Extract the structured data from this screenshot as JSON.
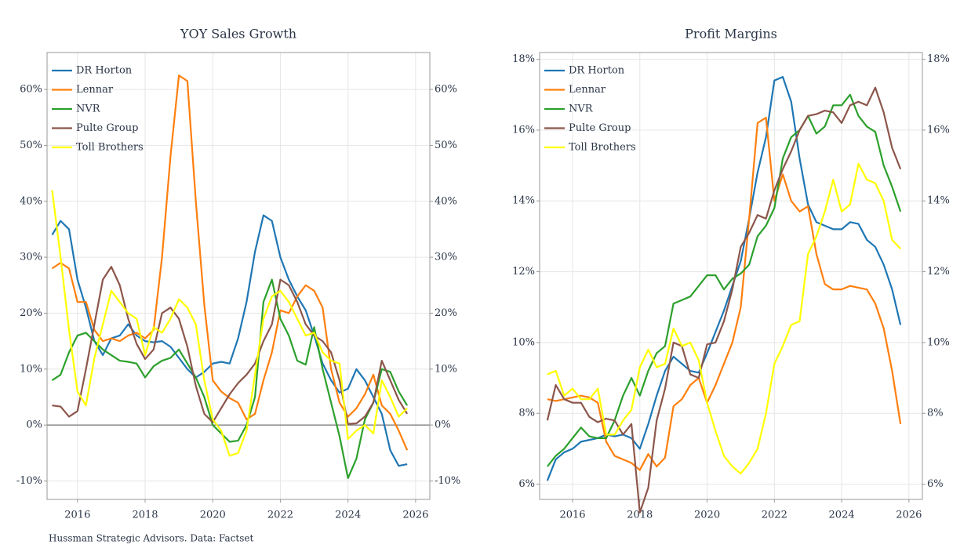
{
  "source": "Hussman Strategic Advisors. Data: Factset",
  "chart_data": [
    {
      "type": "line",
      "title": "YOY Sales Growth",
      "x": [
        2015.25,
        2015.5,
        2015.75,
        2016,
        2016.25,
        2016.5,
        2016.75,
        2017,
        2017.25,
        2017.5,
        2017.75,
        2018,
        2018.25,
        2018.5,
        2018.75,
        2019,
        2019.25,
        2019.5,
        2019.75,
        2020,
        2020.25,
        2020.5,
        2020.75,
        2021,
        2021.25,
        2021.5,
        2021.75,
        2022,
        2022.25,
        2022.5,
        2022.75,
        2023,
        2023.25,
        2023.5,
        2023.75,
        2024,
        2024.25,
        2024.5,
        2024.75,
        2025,
        2025.25,
        2025.5,
        2025.75
      ],
      "xlim": [
        2015.1,
        2026.42
      ],
      "xticks": [
        2016,
        2018,
        2020,
        2022,
        2024,
        2026
      ],
      "ylim": [
        -13.3,
        66.6
      ],
      "yticks": [
        {
          "value": -10,
          "label": "-10%"
        },
        {
          "value": 0,
          "label": "0%"
        },
        {
          "value": 10,
          "label": "10%"
        },
        {
          "value": 20,
          "label": "20%"
        },
        {
          "value": 30,
          "label": "30%"
        },
        {
          "value": 40,
          "label": "40%"
        },
        {
          "value": 50,
          "label": "50%"
        },
        {
          "value": 60,
          "label": "60%"
        }
      ],
      "y2lim": [
        -13.3,
        66.6
      ],
      "y2ticks": [
        {
          "value": -10,
          "label": "-10%"
        },
        {
          "value": 0,
          "label": "0%"
        },
        {
          "value": 10,
          "label": "10%"
        },
        {
          "value": 20,
          "label": "20%"
        },
        {
          "value": 30,
          "label": "30%"
        },
        {
          "value": 40,
          "label": "40%"
        },
        {
          "value": 50,
          "label": "50%"
        },
        {
          "value": 60,
          "label": "60%"
        }
      ],
      "hline": 0,
      "grid": true,
      "legend": "upper left",
      "series": [
        {
          "name": "DR Horton",
          "color": "#1f77b4",
          "values": [
            34,
            36.5,
            35,
            26,
            21,
            15,
            12.5,
            15.5,
            16,
            18,
            16,
            15,
            14.8,
            15,
            14,
            12,
            10,
            8.5,
            9.5,
            11,
            11.3,
            11,
            15.5,
            22,
            31,
            37.5,
            36.5,
            30,
            26,
            23,
            20.5,
            16,
            11,
            8,
            5.8,
            6.5,
            10,
            8,
            5,
            2,
            -4.5,
            -7.3,
            -7
          ]
        },
        {
          "name": "Lennar",
          "color": "#ff7f0e",
          "values": [
            28,
            29,
            28,
            22,
            22,
            17,
            15,
            15.5,
            15,
            16,
            16.5,
            15.5,
            17,
            30,
            48,
            62.5,
            61.5,
            40,
            21.5,
            8,
            6,
            4.8,
            4,
            1,
            2,
            8,
            13,
            20.5,
            20,
            23,
            25,
            24,
            21,
            10,
            4,
            1.5,
            3,
            5.5,
            9,
            3.5,
            2,
            -1,
            -4.5
          ]
        },
        {
          "name": "NVR",
          "color": "#2ca02c",
          "values": [
            8,
            9,
            13,
            16,
            16.5,
            15,
            13.5,
            12.5,
            11.5,
            11.3,
            11,
            8.5,
            10.5,
            11.5,
            12,
            13.5,
            11,
            8.5,
            5,
            0,
            -1.5,
            -3,
            -2.8,
            0,
            5,
            22,
            26,
            19,
            16,
            11.5,
            10.8,
            17.5,
            10,
            4,
            -2,
            -9.5,
            -6,
            1,
            4,
            10,
            9.5,
            6,
            3.5
          ]
        },
        {
          "name": "Pulte Group",
          "color": "#8c564b",
          "values": [
            3.5,
            3.3,
            1.5,
            2.5,
            10,
            18,
            26,
            28.3,
            25,
            19,
            14.5,
            11.8,
            13.5,
            20,
            21,
            19,
            14,
            7,
            2,
            0.5,
            3,
            5.5,
            7.5,
            9,
            11,
            15,
            18,
            26,
            25,
            22,
            18,
            16,
            15,
            13,
            8,
            0.2,
            0.3,
            1.5,
            4,
            11.5,
            8,
            4.5,
            2
          ]
        },
        {
          "name": "Toll Brothers",
          "color": "#ffff00",
          "values": [
            42,
            30,
            17,
            6,
            3.5,
            12,
            18,
            24,
            22,
            20,
            19,
            12.5,
            17.5,
            16.5,
            19,
            22.5,
            21,
            18,
            8,
            1,
            -1,
            -5.5,
            -5,
            -1,
            9,
            19,
            23,
            24,
            22,
            19,
            16,
            16.5,
            13,
            11.5,
            11,
            -2.5,
            -1,
            0,
            -1.5,
            8,
            5,
            1.5,
            3
          ]
        }
      ]
    },
    {
      "type": "line",
      "title": "Profit Margins",
      "x": [
        2015.25,
        2015.5,
        2015.75,
        2016,
        2016.25,
        2016.5,
        2016.75,
        2017,
        2017.25,
        2017.5,
        2017.75,
        2018,
        2018.25,
        2018.5,
        2018.75,
        2019,
        2019.25,
        2019.5,
        2019.75,
        2020,
        2020.25,
        2020.5,
        2020.75,
        2021,
        2021.25,
        2021.5,
        2021.75,
        2022,
        2022.25,
        2022.5,
        2022.75,
        2023,
        2023.25,
        2023.5,
        2023.75,
        2024,
        2024.25,
        2024.5,
        2024.75,
        2025,
        2025.25,
        2025.5,
        2025.75
      ],
      "xlim": [
        2015.02,
        2026.4
      ],
      "xticks": [
        2016,
        2018,
        2020,
        2022,
        2024,
        2026
      ],
      "ylim": [
        5.57,
        18.19
      ],
      "yticks": [
        {
          "value": 6,
          "label": "6%"
        },
        {
          "value": 8,
          "label": "8%"
        },
        {
          "value": 10,
          "label": "10%"
        },
        {
          "value": 12,
          "label": "12%"
        },
        {
          "value": 14,
          "label": "14%"
        },
        {
          "value": 16,
          "label": "16%"
        },
        {
          "value": 18,
          "label": "18%"
        }
      ],
      "y2lim": [
        5.57,
        18.19
      ],
      "y2ticks": [
        {
          "value": 6,
          "label": "6%"
        },
        {
          "value": 8,
          "label": "8%"
        },
        {
          "value": 10,
          "label": "10%"
        },
        {
          "value": 12,
          "label": "12%"
        },
        {
          "value": 14,
          "label": "14%"
        },
        {
          "value": 16,
          "label": "16%"
        },
        {
          "value": 18,
          "label": "18%"
        }
      ],
      "grid": true,
      "legend": "upper left",
      "series": [
        {
          "name": "DR Horton",
          "color": "#1f77b4",
          "values": [
            6.1,
            6.7,
            6.9,
            7.0,
            7.2,
            7.25,
            7.3,
            7.4,
            7.35,
            7.4,
            7.3,
            7.0,
            7.7,
            8.5,
            9.2,
            9.6,
            9.4,
            9.2,
            9.15,
            9.7,
            10.3,
            10.9,
            11.6,
            12.3,
            13.5,
            14.8,
            15.8,
            17.4,
            17.5,
            16.8,
            15.2,
            13.9,
            13.4,
            13.3,
            13.2,
            13.2,
            13.4,
            13.35,
            12.9,
            12.7,
            12.2,
            11.5,
            10.5
          ]
        },
        {
          "name": "Lennar",
          "color": "#ff7f0e",
          "values": [
            8.4,
            8.35,
            8.4,
            8.45,
            8.5,
            8.45,
            8.3,
            7.2,
            6.8,
            6.7,
            6.6,
            6.4,
            6.85,
            6.5,
            6.75,
            8.2,
            8.4,
            8.8,
            9.0,
            8.3,
            8.8,
            9.4,
            10.0,
            11.0,
            13.5,
            16.2,
            16.35,
            14.0,
            14.75,
            14.0,
            13.7,
            13.85,
            12.5,
            11.65,
            11.5,
            11.5,
            11.6,
            11.55,
            11.5,
            11.1,
            10.4,
            9.2,
            7.7
          ]
        },
        {
          "name": "NVR",
          "color": "#2ca02c",
          "values": [
            6.5,
            6.8,
            7.0,
            7.3,
            7.6,
            7.35,
            7.3,
            7.3,
            7.8,
            8.5,
            9.0,
            8.5,
            9.2,
            9.7,
            9.9,
            11.1,
            11.2,
            11.3,
            11.6,
            11.9,
            11.9,
            11.5,
            11.8,
            11.95,
            12.2,
            13.0,
            13.3,
            13.8,
            15.2,
            15.8,
            16.0,
            16.4,
            15.9,
            16.1,
            16.7,
            16.7,
            17.0,
            16.4,
            16.1,
            15.95,
            15.0,
            14.4,
            13.7
          ]
        },
        {
          "name": "Pulte Group",
          "color": "#8c564b",
          "values": [
            7.8,
            8.8,
            8.4,
            8.3,
            8.3,
            7.9,
            7.75,
            7.85,
            7.8,
            7.4,
            7.7,
            5.2,
            5.9,
            7.8,
            8.7,
            10.0,
            9.9,
            9.1,
            9.0,
            9.95,
            10.0,
            10.6,
            11.5,
            12.7,
            13.1,
            13.6,
            13.5,
            14.3,
            14.9,
            15.4,
            16.0,
            16.4,
            16.45,
            16.55,
            16.5,
            16.2,
            16.7,
            16.8,
            16.7,
            17.2,
            16.5,
            15.5,
            14.9
          ]
        },
        {
          "name": "Toll Brothers",
          "color": "#ffff00",
          "values": [
            9.1,
            9.2,
            8.5,
            8.7,
            8.4,
            8.4,
            8.7,
            7.4,
            7.4,
            7.8,
            8.1,
            9.3,
            9.8,
            9.3,
            9.4,
            10.4,
            9.9,
            10.0,
            9.5,
            8.3,
            7.5,
            6.8,
            6.5,
            6.3,
            6.6,
            7.0,
            8.0,
            9.4,
            9.9,
            10.5,
            10.6,
            12.5,
            13.0,
            13.7,
            14.6,
            13.7,
            13.9,
            15.05,
            14.6,
            14.5,
            14.0,
            12.9,
            12.65
          ]
        }
      ]
    }
  ]
}
